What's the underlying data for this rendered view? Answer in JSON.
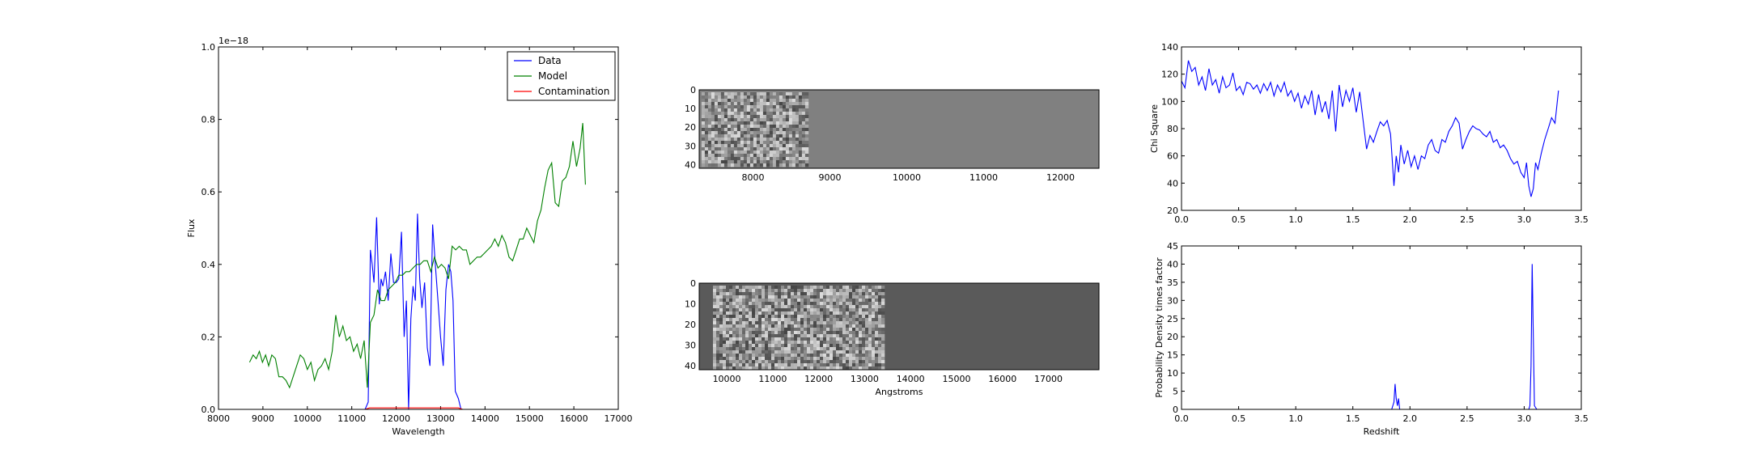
{
  "chart_data": [
    {
      "id": "spectrum",
      "type": "line",
      "xlabel": "Wavelength",
      "ylabel": "Flux",
      "xlim": [
        8000,
        17000
      ],
      "ylim": [
        0.0,
        1.0
      ],
      "offset_text": "1e−18",
      "xticks": [
        8000,
        9000,
        10000,
        11000,
        12000,
        13000,
        14000,
        15000,
        16000,
        17000
      ],
      "yticks": [
        0.0,
        0.2,
        0.4,
        0.6,
        0.8,
        1.0
      ],
      "xtick_labels": [
        "8000",
        "9000",
        "10000",
        "11000",
        "12000",
        "13000",
        "14000",
        "15000",
        "16000",
        "17000"
      ],
      "ytick_labels": [
        "0.0",
        "0.2",
        "0.4",
        "0.6",
        "0.8",
        "1.0"
      ],
      "legend_position": "top-right",
      "legend": [
        {
          "label": "Data",
          "color": "#0000ff"
        },
        {
          "label": "Model",
          "color": "#008000"
        },
        {
          "label": "Contamination",
          "color": "#ff0000"
        }
      ],
      "series": [
        {
          "name": "Data",
          "color": "#0000ff",
          "x": [
            8700,
            11300,
            11370,
            11420,
            11460,
            11500,
            11560,
            11620,
            11660,
            11700,
            11760,
            11820,
            11880,
            11940,
            12000,
            12060,
            12120,
            12180,
            12230,
            12280,
            12330,
            12380,
            12430,
            12480,
            12530,
            12580,
            12640,
            12700,
            12760,
            12820,
            12880,
            12940,
            13000,
            13060,
            13120,
            13180,
            13230,
            13280,
            13330,
            13400,
            13460,
            16500
          ],
          "y": [
            0.0,
            0.0,
            0.02,
            0.44,
            0.4,
            0.35,
            0.53,
            0.29,
            0.36,
            0.34,
            0.38,
            0.3,
            0.43,
            0.35,
            0.35,
            0.36,
            0.49,
            0.2,
            0.3,
            0.0,
            0.25,
            0.34,
            0.3,
            0.54,
            0.36,
            0.28,
            0.35,
            0.17,
            0.12,
            0.51,
            0.4,
            0.3,
            0.2,
            0.12,
            0.33,
            0.4,
            0.38,
            0.3,
            0.05,
            0.03,
            0.0,
            0.0
          ]
        },
        {
          "name": "Model",
          "color": "#008000",
          "x": [
            8700,
            8780,
            8850,
            8920,
            8990,
            9060,
            9130,
            9200,
            9280,
            9360,
            9440,
            9520,
            9600,
            9680,
            9760,
            9840,
            9920,
            10000,
            10080,
            10160,
            10240,
            10320,
            10400,
            10480,
            10560,
            10640,
            10720,
            10800,
            10880,
            10960,
            11040,
            11120,
            11200,
            11280,
            11350,
            11420,
            11500,
            11580,
            11660,
            11740,
            11820,
            11900,
            11980,
            12060,
            12140,
            12220,
            12300,
            12380,
            12460,
            12540,
            12620,
            12700,
            12780,
            12860,
            12940,
            13020,
            13100,
            13180,
            13260,
            13340,
            13420,
            13500,
            13580,
            13660,
            13740,
            13820,
            13900,
            13980,
            14060,
            14140,
            14220,
            14300,
            14380,
            14460,
            14540,
            14620,
            14700,
            14780,
            14860,
            14940,
            15020,
            15100,
            15180,
            15260,
            15340,
            15420,
            15500,
            15580,
            15660,
            15740,
            15820,
            15900,
            15980,
            16060,
            16140,
            16200,
            16260
          ],
          "y": [
            0.13,
            0.15,
            0.14,
            0.16,
            0.13,
            0.15,
            0.12,
            0.15,
            0.14,
            0.09,
            0.09,
            0.08,
            0.06,
            0.09,
            0.12,
            0.15,
            0.14,
            0.11,
            0.13,
            0.08,
            0.11,
            0.12,
            0.14,
            0.11,
            0.16,
            0.26,
            0.2,
            0.23,
            0.19,
            0.2,
            0.16,
            0.18,
            0.14,
            0.19,
            0.06,
            0.24,
            0.26,
            0.33,
            0.3,
            0.3,
            0.33,
            0.34,
            0.35,
            0.37,
            0.37,
            0.38,
            0.38,
            0.39,
            0.4,
            0.4,
            0.41,
            0.41,
            0.38,
            0.42,
            0.39,
            0.4,
            0.39,
            0.36,
            0.45,
            0.44,
            0.45,
            0.44,
            0.44,
            0.4,
            0.41,
            0.42,
            0.42,
            0.43,
            0.44,
            0.45,
            0.47,
            0.45,
            0.48,
            0.46,
            0.42,
            0.41,
            0.44,
            0.47,
            0.47,
            0.5,
            0.48,
            0.46,
            0.52,
            0.55,
            0.61,
            0.66,
            0.68,
            0.57,
            0.56,
            0.63,
            0.64,
            0.67,
            0.74,
            0.67,
            0.72,
            0.79,
            0.62
          ]
        },
        {
          "name": "Contamination",
          "color": "#ff0000",
          "x": [
            8700,
            11300,
            11400,
            13400,
            13500,
            16500
          ],
          "y": [
            0.0,
            0.0,
            0.004,
            0.004,
            0.0,
            0.0
          ]
        }
      ]
    },
    {
      "id": "image-top",
      "type": "heatmap",
      "xlim": [
        7300,
        12500
      ],
      "ylim": [
        0,
        42
      ],
      "xticks": [
        8000,
        9000,
        10000,
        11000,
        12000
      ],
      "xtick_labels": [
        "8000",
        "9000",
        "10000",
        "11000",
        "12000"
      ],
      "yticks": [
        0,
        10,
        20,
        30,
        40
      ],
      "ytick_labels": [
        "0",
        "10",
        "20",
        "30",
        "40"
      ],
      "data_extent": [
        7330,
        8700
      ],
      "fill_color": "#808080"
    },
    {
      "id": "image-bottom",
      "type": "heatmap",
      "xlabel": "Angstroms",
      "xlim": [
        9400,
        18100
      ],
      "ylim": [
        0,
        42
      ],
      "xticks": [
        10000,
        11000,
        12000,
        13000,
        14000,
        15000,
        16000,
        17000
      ],
      "xtick_labels": [
        "10000",
        "11000",
        "12000",
        "13000",
        "14000",
        "15000",
        "16000",
        "17000"
      ],
      "yticks": [
        0,
        10,
        20,
        30,
        40
      ],
      "ytick_labels": [
        "0",
        "10",
        "20",
        "30",
        "40"
      ],
      "data_extent": [
        9700,
        13400
      ],
      "fill_color": "#5a5a5a"
    },
    {
      "id": "chi-square",
      "type": "line",
      "ylabel": "Chi Square",
      "xlim": [
        0.0,
        3.5
      ],
      "ylim": [
        20,
        140
      ],
      "xticks": [
        0.0,
        0.5,
        1.0,
        1.5,
        2.0,
        2.5,
        3.0,
        3.5
      ],
      "xtick_labels": [
        "0.0",
        "0.5",
        "1.0",
        "1.5",
        "2.0",
        "2.5",
        "3.0",
        "3.5"
      ],
      "yticks": [
        20,
        40,
        60,
        80,
        100,
        120,
        140
      ],
      "ytick_labels": [
        "20",
        "40",
        "60",
        "80",
        "100",
        "120",
        "140"
      ],
      "series": [
        {
          "color": "#0000ff",
          "x": [
            0.0,
            0.03,
            0.06,
            0.09,
            0.12,
            0.15,
            0.18,
            0.21,
            0.24,
            0.27,
            0.3,
            0.33,
            0.36,
            0.39,
            0.42,
            0.45,
            0.48,
            0.51,
            0.54,
            0.57,
            0.6,
            0.63,
            0.66,
            0.69,
            0.72,
            0.75,
            0.78,
            0.81,
            0.84,
            0.87,
            0.9,
            0.93,
            0.96,
            0.99,
            1.02,
            1.05,
            1.08,
            1.11,
            1.14,
            1.17,
            1.2,
            1.23,
            1.26,
            1.29,
            1.32,
            1.35,
            1.38,
            1.41,
            1.44,
            1.47,
            1.5,
            1.53,
            1.56,
            1.59,
            1.62,
            1.65,
            1.68,
            1.71,
            1.74,
            1.77,
            1.8,
            1.83,
            1.86,
            1.88,
            1.9,
            1.92,
            1.95,
            1.98,
            2.01,
            2.04,
            2.07,
            2.1,
            2.13,
            2.16,
            2.19,
            2.22,
            2.25,
            2.28,
            2.31,
            2.34,
            2.37,
            2.4,
            2.43,
            2.46,
            2.49,
            2.52,
            2.55,
            2.58,
            2.61,
            2.64,
            2.67,
            2.7,
            2.73,
            2.76,
            2.79,
            2.82,
            2.85,
            2.88,
            2.91,
            2.94,
            2.97,
            3.0,
            3.02,
            3.04,
            3.06,
            3.08,
            3.1,
            3.12,
            3.15,
            3.18,
            3.21,
            3.24,
            3.27,
            3.3
          ],
          "y": [
            115,
            110,
            130,
            122,
            125,
            112,
            118,
            108,
            124,
            112,
            116,
            106,
            118,
            110,
            112,
            121,
            108,
            111,
            105,
            114,
            113,
            109,
            112,
            106,
            113,
            108,
            114,
            104,
            112,
            107,
            114,
            104,
            108,
            100,
            106,
            95,
            104,
            98,
            108,
            90,
            105,
            92,
            100,
            87,
            108,
            78,
            112,
            96,
            108,
            100,
            110,
            92,
            107,
            86,
            65,
            75,
            70,
            78,
            85,
            82,
            86,
            76,
            38,
            60,
            48,
            68,
            54,
            64,
            52,
            60,
            50,
            60,
            58,
            68,
            72,
            64,
            62,
            72,
            70,
            78,
            82,
            88,
            84,
            65,
            72,
            78,
            82,
            80,
            79,
            76,
            74,
            78,
            70,
            72,
            66,
            68,
            64,
            58,
            54,
            56,
            48,
            44,
            55,
            38,
            30,
            36,
            55,
            50,
            62,
            72,
            80,
            88,
            84,
            108
          ]
        }
      ]
    },
    {
      "id": "probability-density",
      "type": "line",
      "xlabel": "Redshift",
      "ylabel": "Probability Density times factor",
      "xlim": [
        0.0,
        3.5
      ],
      "ylim": [
        0,
        45
      ],
      "xticks": [
        0.0,
        0.5,
        1.0,
        1.5,
        2.0,
        2.5,
        3.0,
        3.5
      ],
      "xtick_labels": [
        "0.0",
        "0.5",
        "1.0",
        "1.5",
        "2.0",
        "2.5",
        "3.0",
        "3.5"
      ],
      "yticks": [
        0,
        5,
        10,
        15,
        20,
        25,
        30,
        35,
        40,
        45
      ],
      "ytick_labels": [
        "0",
        "5",
        "10",
        "15",
        "20",
        "25",
        "30",
        "35",
        "40",
        "45"
      ],
      "series": [
        {
          "color": "#0000ff",
          "x": [
            0.0,
            1.84,
            1.86,
            1.87,
            1.88,
            1.89,
            1.9,
            1.91,
            1.93,
            1.95,
            3.0,
            3.04,
            3.05,
            3.06,
            3.07,
            3.08,
            3.09,
            3.11,
            3.3
          ],
          "y": [
            0,
            0,
            2,
            7,
            3,
            1,
            3,
            0,
            0,
            0,
            0,
            0,
            1,
            12,
            40,
            20,
            1,
            0,
            0
          ]
        }
      ]
    }
  ]
}
